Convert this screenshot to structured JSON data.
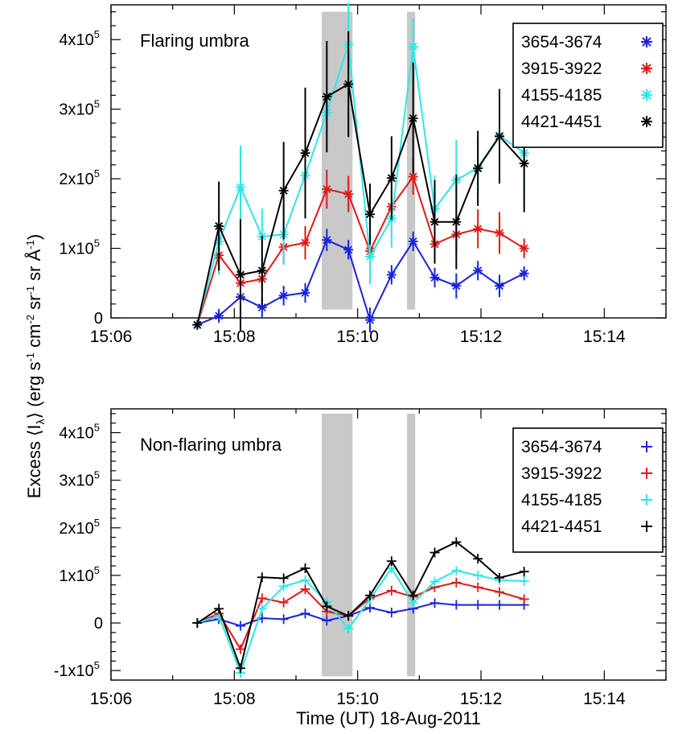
{
  "figure": {
    "ylabel": "Excess ⟨I",
    "ylabel_sub": "λ",
    "ylabel_tail": "⟩ (erg s",
    "ylabel_units": [
      {
        "t": "-1",
        "sup": true
      },
      {
        "t": " cm",
        "sup": false
      },
      {
        "t": "-2",
        "sup": true
      },
      {
        "t": " sr",
        "sup": false
      },
      {
        "t": "-1",
        "sup": true
      },
      {
        "t": " sr Å",
        "sup": false
      },
      {
        "t": "-1",
        "sup": true
      },
      {
        "t": ")",
        "sup": false
      }
    ],
    "xlabel": "Time (UT) 18-Aug-2011"
  },
  "chart_data": [
    {
      "type": "line",
      "title": "Flaring umbra",
      "marker": "asterisk",
      "xlim": [
        "15:06",
        "15:15"
      ],
      "ylim": [
        0,
        450000
      ],
      "x_ticks": [
        "15:06",
        "15:08",
        "15:10",
        "15:12",
        "15:14"
      ],
      "y_ticks": [
        {
          "value": 0,
          "mant": "0",
          "exp": ""
        },
        {
          "value": 100000,
          "mant": "1x10",
          "exp": "5"
        },
        {
          "value": 200000,
          "mant": "2x10",
          "exp": "5"
        },
        {
          "value": 300000,
          "mant": "3x10",
          "exp": "5"
        },
        {
          "value": 400000,
          "mant": "4x10",
          "exp": "5"
        }
      ],
      "legend_position": "top-right",
      "shaded_intervals": [
        [
          "15:09:25",
          "15:09:55"
        ],
        [
          "15:10:48",
          "15:10:56"
        ]
      ],
      "x": [
        "15:07:24",
        "15:07:45",
        "15:08:06",
        "15:08:27",
        "15:08:48",
        "15:09:09",
        "15:09:30",
        "15:09:51",
        "15:10:12",
        "15:10:33",
        "15:10:54",
        "15:11:15",
        "15:11:36",
        "15:11:57",
        "15:12:18",
        "15:12:42"
      ],
      "series": [
        {
          "name": "3654-3674",
          "color": "#1a22dd",
          "values": [
            -10000,
            3000,
            30000,
            15000,
            32000,
            36000,
            112000,
            98000,
            -3000,
            62000,
            110000,
            58000,
            46000,
            68000,
            46000,
            64000
          ],
          "errors": [
            0,
            10000,
            18000,
            14000,
            14000,
            14000,
            16000,
            14000,
            18000,
            14000,
            14000,
            14000,
            18000,
            14000,
            16000,
            10000
          ]
        },
        {
          "name": "3915-3922",
          "color": "#e11818",
          "values": [
            -10000,
            90000,
            50000,
            56000,
            102000,
            108000,
            185000,
            178000,
            96000,
            160000,
            203000,
            106000,
            120000,
            128000,
            122000,
            100000
          ],
          "errors": [
            0,
            28000,
            20000,
            18000,
            24000,
            24000,
            28000,
            26000,
            24000,
            24000,
            26000,
            28000,
            28000,
            28000,
            30000,
            14000
          ]
        },
        {
          "name": "4155-4185",
          "color": "#2ee6e6",
          "values": [
            -10000,
            110000,
            188000,
            117000,
            120000,
            205000,
            295000,
            393000,
            88000,
            143000,
            390000,
            157000,
            198000,
            216000,
            262000,
            237000
          ],
          "errors": [
            0,
            48000,
            60000,
            40000,
            44000,
            44000,
            40000,
            60000,
            40000,
            42000,
            40000,
            48000,
            58000,
            40000,
            54000,
            54000
          ]
        },
        {
          "name": "4421-4451",
          "color": "#000000",
          "values": [
            -10000,
            132000,
            62000,
            68000,
            183000,
            237000,
            318000,
            336000,
            149000,
            201000,
            287000,
            138000,
            138000,
            215000,
            261000,
            222000
          ],
          "errors": [
            0,
            64000,
            80000,
            50000,
            70000,
            94000,
            80000,
            76000,
            44000,
            60000,
            80000,
            60000,
            68000,
            54000,
            68000,
            70000
          ]
        }
      ]
    },
    {
      "type": "line",
      "title": "Non-flaring umbra",
      "marker": "plus",
      "xlim": [
        "15:06",
        "15:15"
      ],
      "ylim": [
        -120000,
        450000
      ],
      "x_ticks": [
        "15:06",
        "15:08",
        "15:10",
        "15:12",
        "15:14"
      ],
      "y_ticks": [
        {
          "value": -100000,
          "mant": "-1x10",
          "exp": "5"
        },
        {
          "value": 0,
          "mant": "0",
          "exp": ""
        },
        {
          "value": 100000,
          "mant": "1x10",
          "exp": "5"
        },
        {
          "value": 200000,
          "mant": "2x10",
          "exp": "5"
        },
        {
          "value": 300000,
          "mant": "3x10",
          "exp": "5"
        },
        {
          "value": 400000,
          "mant": "4x10",
          "exp": "5"
        }
      ],
      "legend_position": "top-right",
      "shaded_intervals": [
        [
          "15:09:25",
          "15:09:55"
        ],
        [
          "15:10:48",
          "15:10:56"
        ]
      ],
      "x": [
        "15:07:24",
        "15:07:45",
        "15:08:06",
        "15:08:27",
        "15:08:48",
        "15:09:09",
        "15:09:30",
        "15:09:51",
        "15:10:12",
        "15:10:33",
        "15:10:54",
        "15:11:15",
        "15:11:36",
        "15:11:57",
        "15:12:18",
        "15:12:42"
      ],
      "series": [
        {
          "name": "3654-3674",
          "color": "#1a22dd",
          "values": [
            0,
            8000,
            -6000,
            10000,
            8000,
            20000,
            5000,
            15000,
            32000,
            22000,
            30000,
            42000,
            38000,
            38000,
            38000,
            38000
          ]
        },
        {
          "name": "3915-3922",
          "color": "#e11818",
          "values": [
            0,
            20000,
            -55000,
            52000,
            43000,
            71000,
            24000,
            15000,
            52000,
            68000,
            55000,
            75000,
            85000,
            75000,
            65000,
            50000
          ]
        },
        {
          "name": "4155-4185",
          "color": "#2ee6e6",
          "values": [
            0,
            15000,
            -105000,
            30000,
            77000,
            90000,
            44000,
            -12000,
            50000,
            115000,
            42000,
            87000,
            110000,
            100000,
            90000,
            88000
          ]
        },
        {
          "name": "4421-4451",
          "color": "#000000",
          "values": [
            0,
            30000,
            -95000,
            96000,
            94000,
            115000,
            35000,
            15000,
            58000,
            130000,
            58000,
            148000,
            170000,
            135000,
            95000,
            108000
          ]
        }
      ]
    }
  ]
}
